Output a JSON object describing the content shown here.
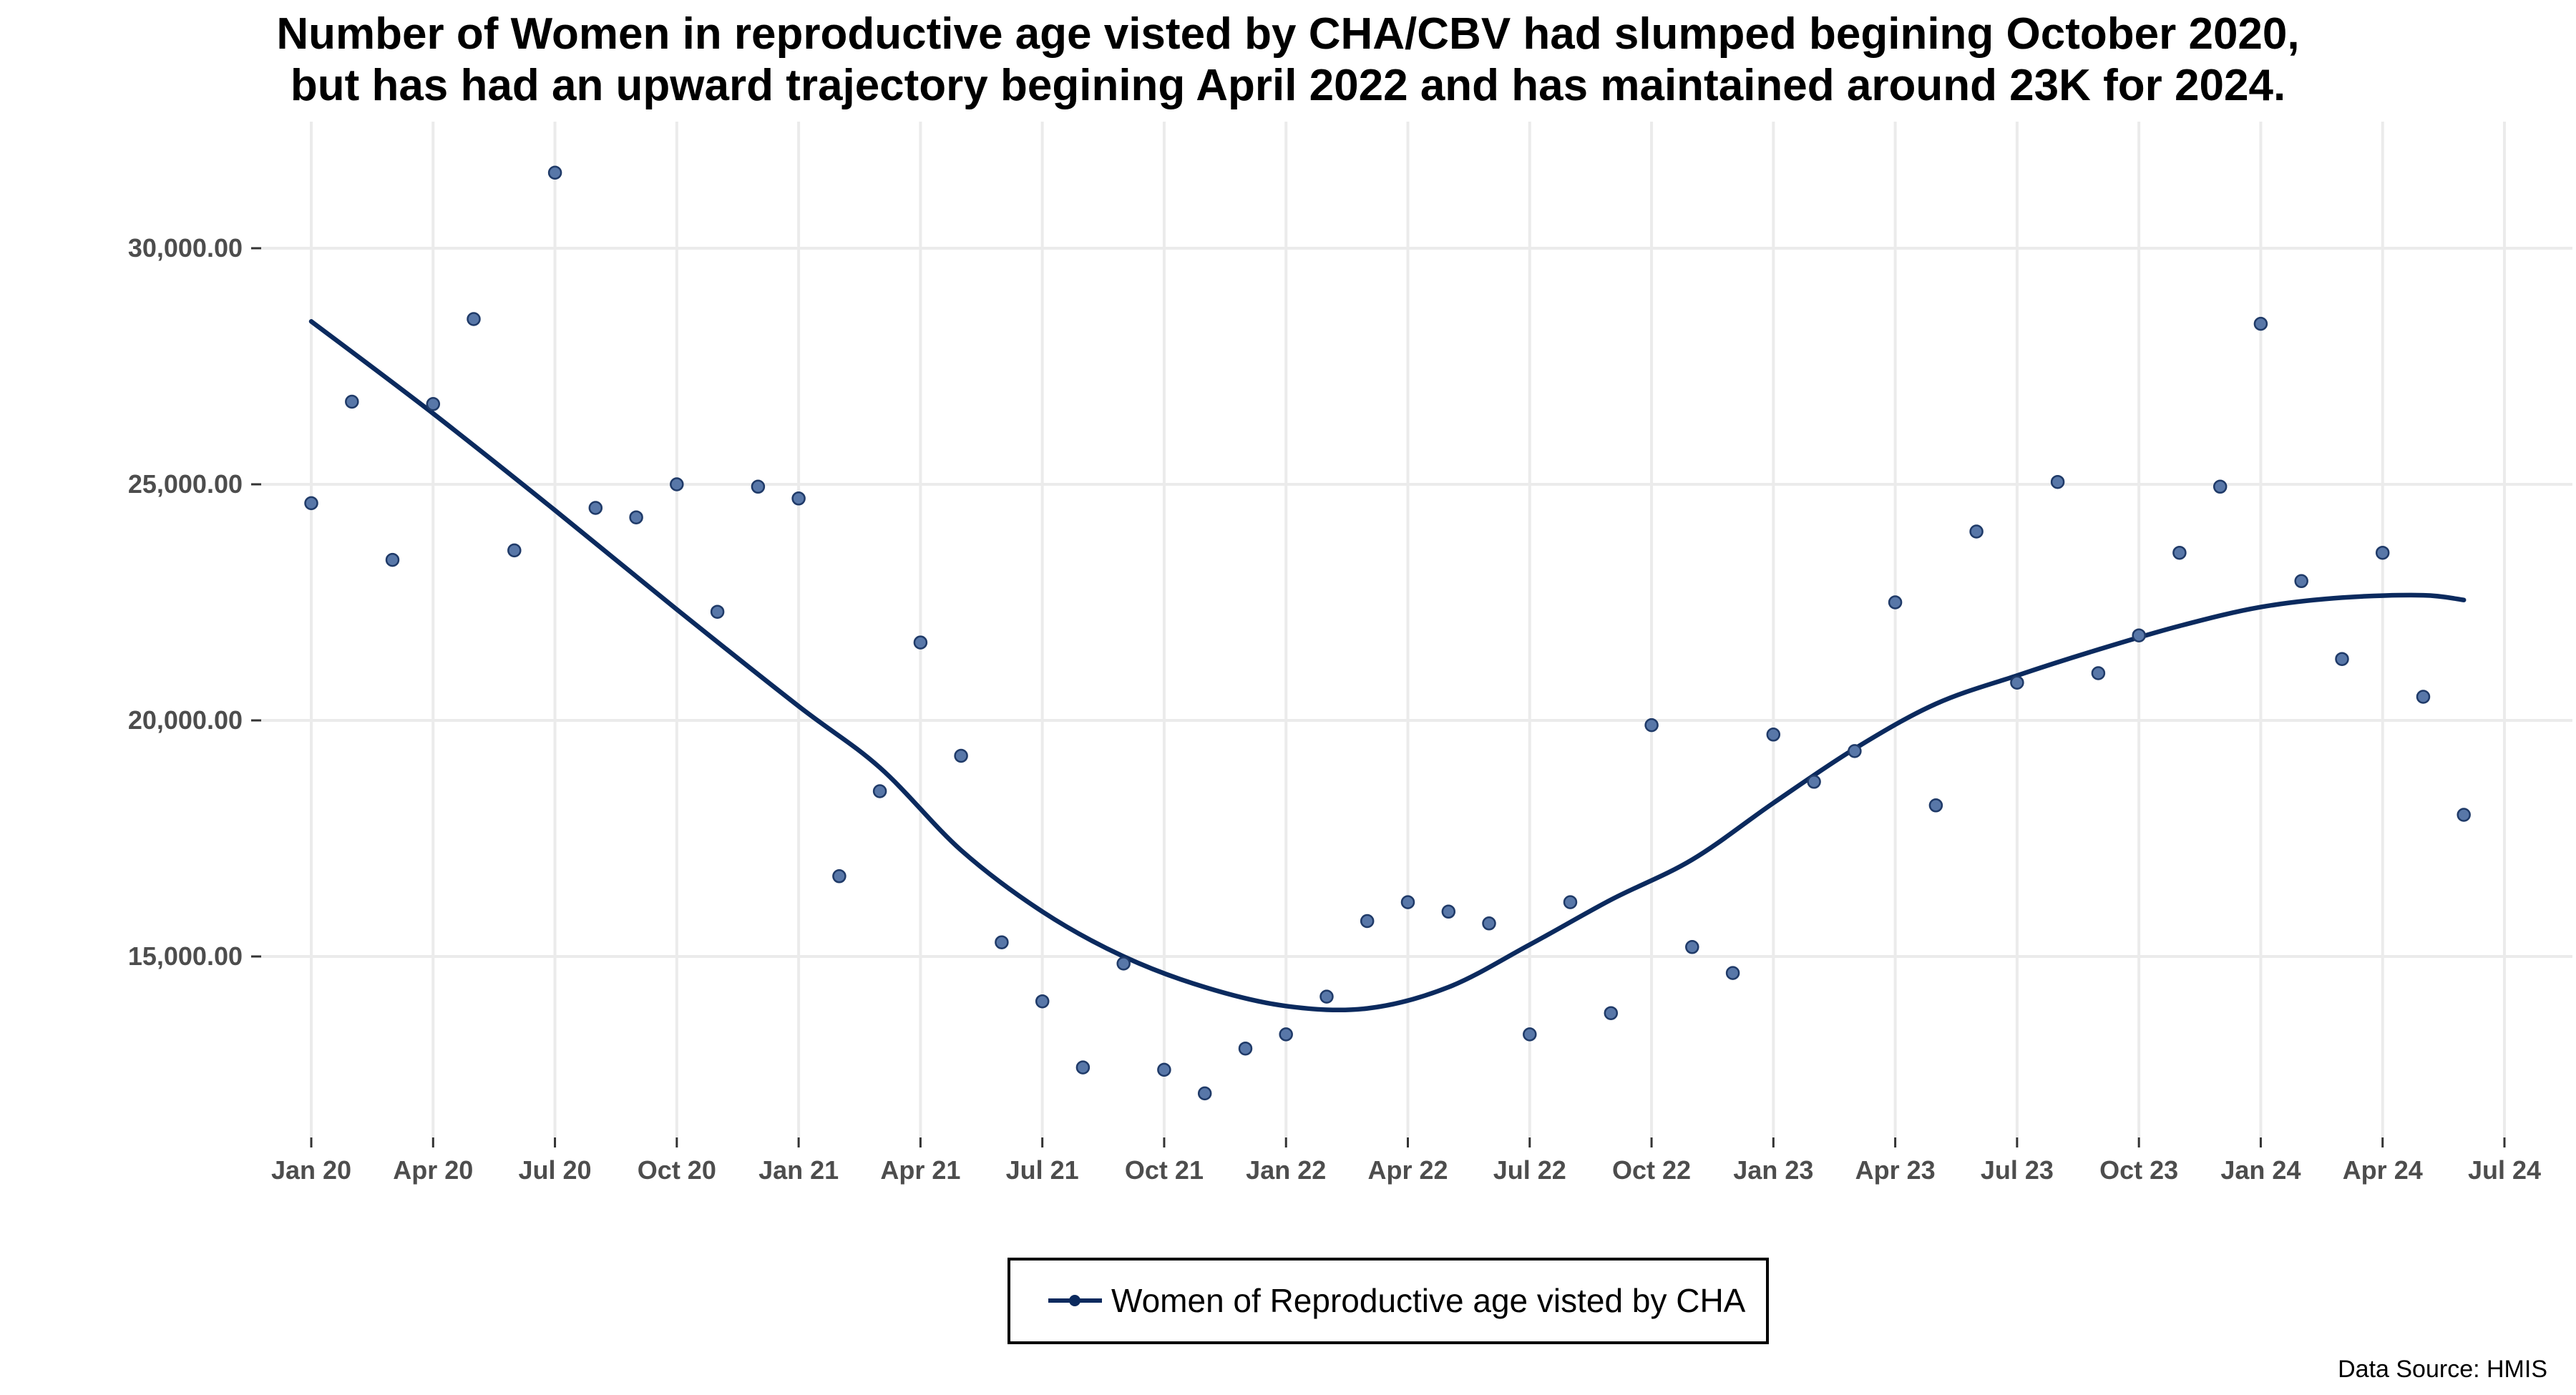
{
  "chart_data": {
    "type": "scatter",
    "title_lines": [
      "Number of Women in reproductive age visted by CHA/CBV had slumped begining October 2020,",
      "but has had an upward trajectory begining April 2022 and has maintained around 23K for 2024."
    ],
    "xlabel": "",
    "ylabel": "",
    "x_ticks": [
      "Jan 20",
      "Apr 20",
      "Jul 20",
      "Oct 20",
      "Jan 21",
      "Apr 21",
      "Jul 21",
      "Oct 21",
      "Jan 22",
      "Apr 22",
      "Jul 22",
      "Oct 22",
      "Jan 23",
      "Apr 23",
      "Jul 23",
      "Oct 23",
      "Jan 24",
      "Apr 24",
      "Jul 24"
    ],
    "y_ticks": [
      "15,000.00",
      "20,000.00",
      "25,000.00",
      "30,000.00"
    ],
    "y_tick_values": [
      15000,
      20000,
      25000,
      30000
    ],
    "ylim": [
      11500,
      32200
    ],
    "xlim_months": [
      "2019-12",
      "2024-08"
    ],
    "grid": true,
    "legend_position": "bottom",
    "series": [
      {
        "name": "Women of Reproductive age visted by CHA",
        "color": "#0b2a5e",
        "points": [
          {
            "x": "2020-01",
            "y": 24600
          },
          {
            "x": "2020-02",
            "y": 26750
          },
          {
            "x": "2020-03",
            "y": 23400
          },
          {
            "x": "2020-04",
            "y": 26700
          },
          {
            "x": "2020-05",
            "y": 28500
          },
          {
            "x": "2020-06",
            "y": 23600
          },
          {
            "x": "2020-07",
            "y": 31600
          },
          {
            "x": "2020-08",
            "y": 24500
          },
          {
            "x": "2020-09",
            "y": 24300
          },
          {
            "x": "2020-10",
            "y": 25000
          },
          {
            "x": "2020-11",
            "y": 22300
          },
          {
            "x": "2020-12",
            "y": 24950
          },
          {
            "x": "2021-01",
            "y": 24700
          },
          {
            "x": "2021-02",
            "y": 16700
          },
          {
            "x": "2021-03",
            "y": 18500
          },
          {
            "x": "2021-04",
            "y": 21650
          },
          {
            "x": "2021-05",
            "y": 19250
          },
          {
            "x": "2021-06",
            "y": 15300
          },
          {
            "x": "2021-07",
            "y": 14050
          },
          {
            "x": "2021-08",
            "y": 12650
          },
          {
            "x": "2021-09",
            "y": 14850
          },
          {
            "x": "2021-10",
            "y": 12600
          },
          {
            "x": "2021-11",
            "y": 12100
          },
          {
            "x": "2021-12",
            "y": 13050
          },
          {
            "x": "2022-01",
            "y": 13350
          },
          {
            "x": "2022-02",
            "y": 14150
          },
          {
            "x": "2022-03",
            "y": 15750
          },
          {
            "x": "2022-04",
            "y": 16150
          },
          {
            "x": "2022-05",
            "y": 15950
          },
          {
            "x": "2022-06",
            "y": 15700
          },
          {
            "x": "2022-07",
            "y": 13350
          },
          {
            "x": "2022-08",
            "y": 16150
          },
          {
            "x": "2022-09",
            "y": 13800
          },
          {
            "x": "2022-10",
            "y": 19900
          },
          {
            "x": "2022-11",
            "y": 15200
          },
          {
            "x": "2022-12",
            "y": 14650
          },
          {
            "x": "2023-01",
            "y": 19700
          },
          {
            "x": "2023-02",
            "y": 18700
          },
          {
            "x": "2023-03",
            "y": 19350
          },
          {
            "x": "2023-04",
            "y": 22500
          },
          {
            "x": "2023-05",
            "y": 18200
          },
          {
            "x": "2023-06",
            "y": 24000
          },
          {
            "x": "2023-07",
            "y": 20800
          },
          {
            "x": "2023-08",
            "y": 25050
          },
          {
            "x": "2023-09",
            "y": 21000
          },
          {
            "x": "2023-10",
            "y": 21800
          },
          {
            "x": "2023-11",
            "y": 23550
          },
          {
            "x": "2023-12",
            "y": 24950
          },
          {
            "x": "2024-01",
            "y": 28400
          },
          {
            "x": "2024-02",
            "y": 22950
          },
          {
            "x": "2024-03",
            "y": 21300
          },
          {
            "x": "2024-04",
            "y": 23550
          },
          {
            "x": "2024-05",
            "y": 20500
          },
          {
            "x": "2024-06",
            "y": 18000
          }
        ],
        "trend": [
          {
            "x": "2020-01",
            "y": 28450
          },
          {
            "x": "2020-04",
            "y": 26500
          },
          {
            "x": "2020-07",
            "y": 24450
          },
          {
            "x": "2020-10",
            "y": 22350
          },
          {
            "x": "2021-01",
            "y": 20300
          },
          {
            "x": "2021-03",
            "y": 19000
          },
          {
            "x": "2021-05",
            "y": 17250
          },
          {
            "x": "2021-07",
            "y": 15950
          },
          {
            "x": "2021-09",
            "y": 15000
          },
          {
            "x": "2021-11",
            "y": 14350
          },
          {
            "x": "2022-01",
            "y": 13950
          },
          {
            "x": "2022-03",
            "y": 13900
          },
          {
            "x": "2022-05",
            "y": 14350
          },
          {
            "x": "2022-07",
            "y": 15250
          },
          {
            "x": "2022-09",
            "y": 16200
          },
          {
            "x": "2022-11",
            "y": 17050
          },
          {
            "x": "2023-01",
            "y": 18250
          },
          {
            "x": "2023-03",
            "y": 19400
          },
          {
            "x": "2023-05",
            "y": 20350
          },
          {
            "x": "2023-07",
            "y": 20950
          },
          {
            "x": "2023-09",
            "y": 21500
          },
          {
            "x": "2023-11",
            "y": 22000
          },
          {
            "x": "2024-01",
            "y": 22400
          },
          {
            "x": "2024-03",
            "y": 22600
          },
          {
            "x": "2024-05",
            "y": 22650
          },
          {
            "x": "2024-06",
            "y": 22550
          }
        ]
      }
    ]
  },
  "source": "Data Source: HMIS"
}
